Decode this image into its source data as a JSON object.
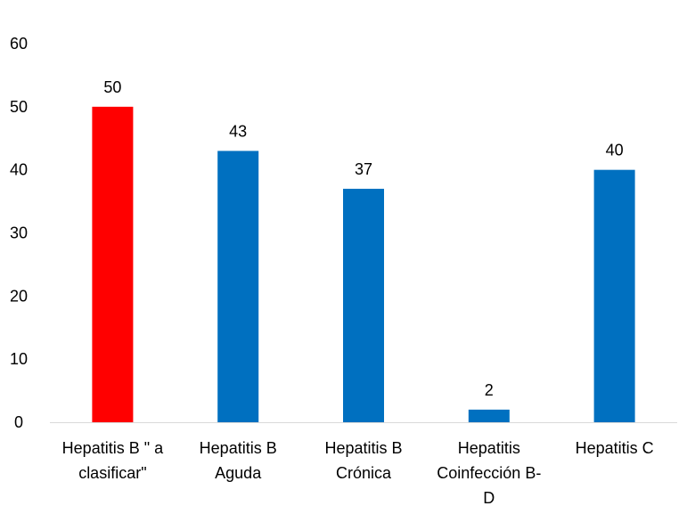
{
  "chart_data": {
    "type": "bar",
    "categories": [
      [
        "Hepatitis B \" a",
        "clasificar\""
      ],
      [
        "Hepatitis B",
        "Aguda"
      ],
      [
        "Hepatitis B",
        "Crónica"
      ],
      [
        "Hepatitis",
        "Coinfección B-",
        "D"
      ],
      [
        "Hepatitis C"
      ]
    ],
    "values": [
      50,
      43,
      37,
      2,
      40
    ],
    "data_labels": [
      "50",
      "43",
      "37",
      "2",
      "40"
    ],
    "y_ticks": [
      "0",
      "10",
      "20",
      "30",
      "40",
      "50",
      "60"
    ],
    "ylim": [
      0,
      60
    ],
    "bar_colors": [
      "#ff0000",
      "#0070c0",
      "#0070c0",
      "#0070c0",
      "#0070c0"
    ],
    "axis_color": "#d9d9d9",
    "grid": false,
    "legend": "none"
  }
}
